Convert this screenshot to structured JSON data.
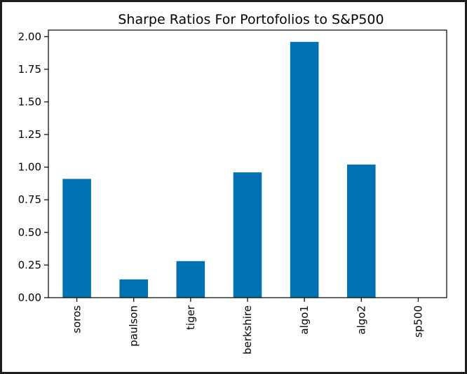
{
  "chart_data": {
    "type": "bar",
    "title": "Sharpe Ratios For Portofolios to S&P500",
    "xlabel": "",
    "ylabel": "",
    "categories": [
      "soros",
      "paulson",
      "tiger",
      "berkshire",
      "algo1",
      "algo2",
      "sp500"
    ],
    "values": [
      0.91,
      0.14,
      0.28,
      0.96,
      1.96,
      1.02,
      0.0
    ],
    "ylim": [
      0,
      2.05
    ],
    "yticks": [
      "0.00",
      "0.25",
      "0.50",
      "0.75",
      "1.00",
      "1.25",
      "1.50",
      "1.75",
      "2.00"
    ],
    "ytick_values": [
      0,
      0.25,
      0.5,
      0.75,
      1.0,
      1.25,
      1.5,
      1.75,
      2.0
    ],
    "grid": false,
    "bar_color": "#0072b2"
  }
}
